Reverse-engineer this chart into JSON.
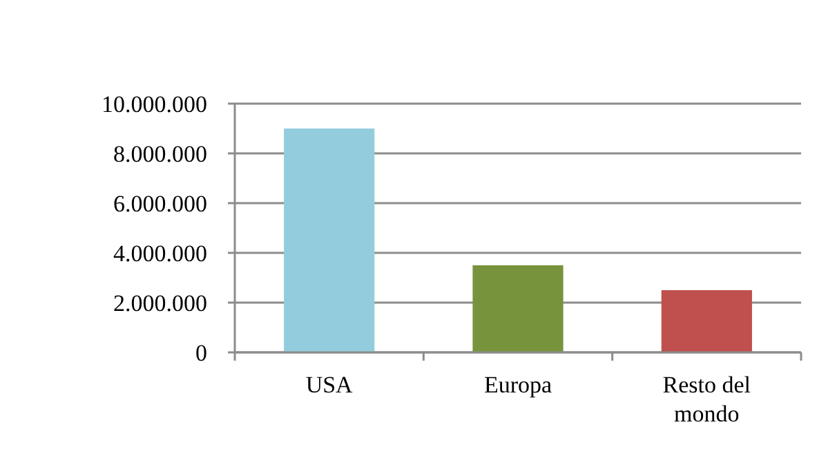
{
  "chart_data": {
    "type": "bar",
    "categories": [
      "USA",
      "Europa",
      "Resto del mondo"
    ],
    "values": [
      9000000,
      3500000,
      2500000
    ],
    "colors": [
      "#93cddd",
      "#77933c",
      "#c0504d"
    ],
    "ylim": [
      0,
      10000000
    ],
    "yticks": [
      {
        "value": 0,
        "label": "0"
      },
      {
        "value": 2000000,
        "label": "2.000.000"
      },
      {
        "value": 4000000,
        "label": "4.000.000"
      },
      {
        "value": 6000000,
        "label": "6.000.000"
      },
      {
        "value": 8000000,
        "label": "8.000.000"
      },
      {
        "value": 10000000,
        "label": "10.000.000"
      }
    ],
    "grid": "y"
  }
}
